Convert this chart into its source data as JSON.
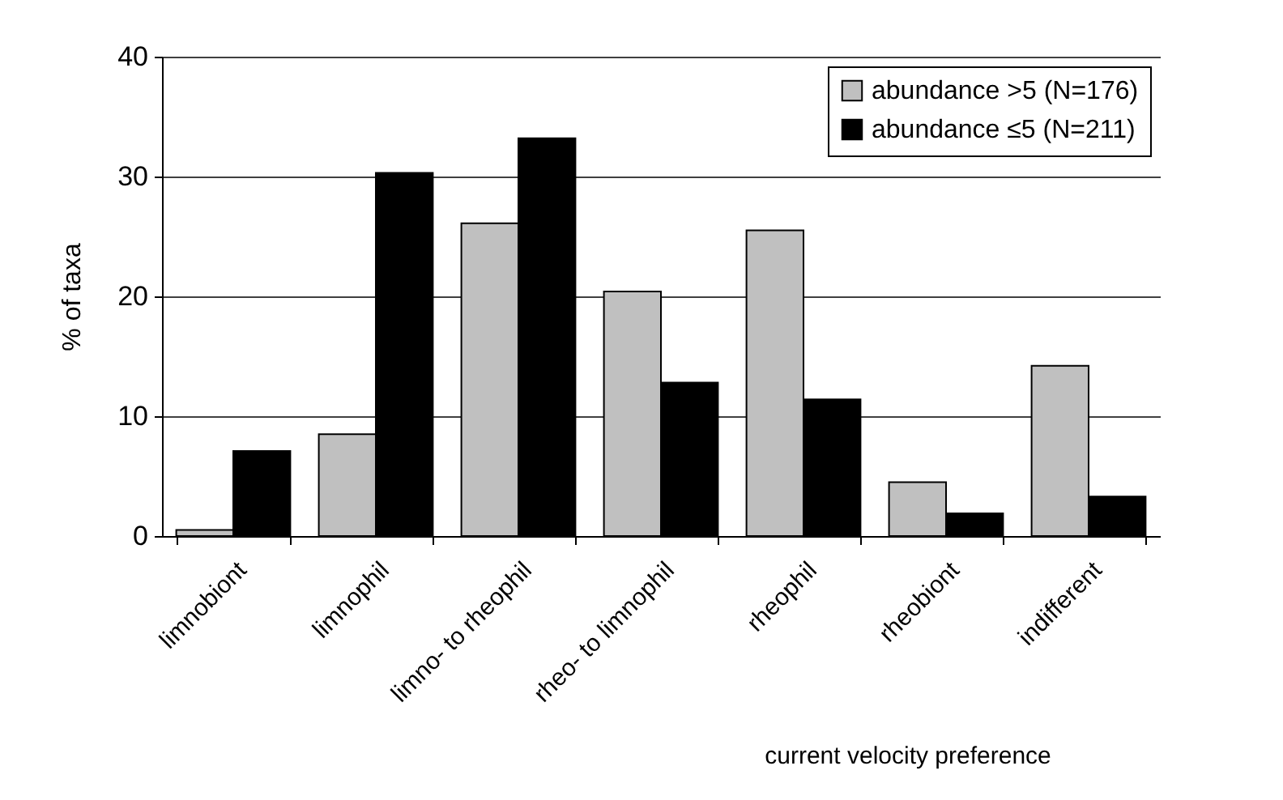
{
  "chart_data": {
    "type": "bar",
    "xlabel": "current velocity preference",
    "ylabel": "% of taxa",
    "categories": [
      "limnobiont",
      "limnophil",
      "limno- to rheophil",
      "rheo- to limnophil",
      "rheophil",
      "rheobiont",
      "indifferent"
    ],
    "series": [
      {
        "name": "abundance >5 (N=176)",
        "color": "#c0c0c0",
        "values": [
          0.5,
          8.5,
          26.1,
          20.4,
          25.5,
          4.5,
          14.2
        ]
      },
      {
        "name": "abundance ≤5 (N=211)",
        "color": "#000000",
        "values": [
          7.1,
          30.3,
          33.2,
          12.8,
          11.4,
          1.9,
          3.3
        ]
      }
    ],
    "ylim": [
      0,
      40
    ],
    "yticks": [
      0,
      10,
      20,
      30,
      40
    ],
    "grid": "y",
    "legend": "top right"
  }
}
